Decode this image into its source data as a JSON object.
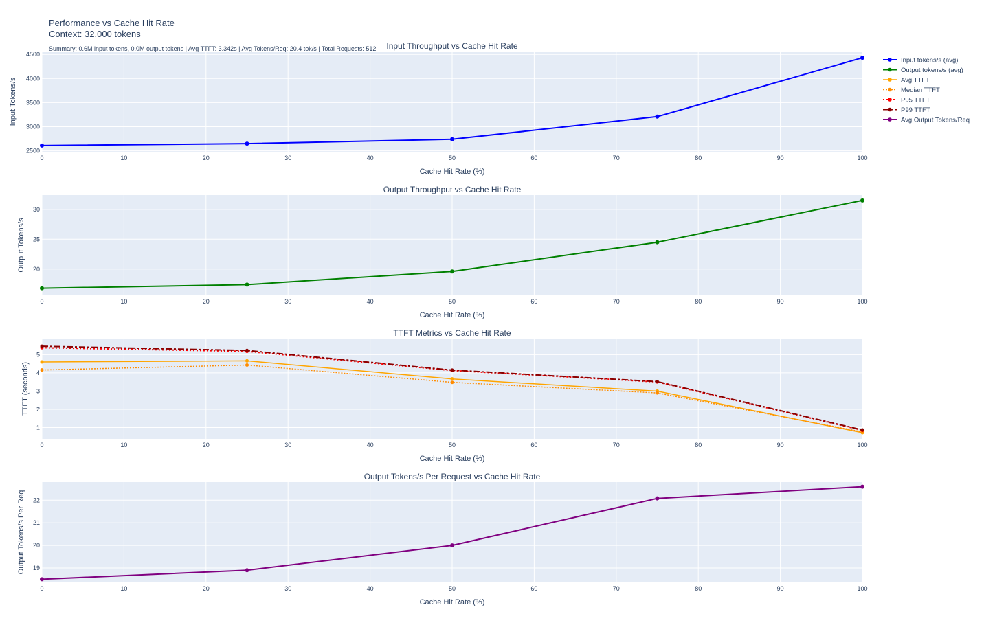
{
  "figure": {
    "title_line1": "Performance vs Cache Hit Rate",
    "title_line2": "Context: 32,000 tokens",
    "summary": "Summary: 0.6M input tokens, 0.0M output tokens | Avg TTFT: 3.342s | Avg Tokens/Req: 20.4 tok/s | Total Requests: 512"
  },
  "colors": {
    "plot_bg": "#e5ecf6",
    "grid": "#ffffff",
    "text": "#2a3f5f",
    "input": "#0000ff",
    "output": "#008000",
    "avg_ttft": "#ffa500",
    "median_ttft": "#ff8c00",
    "p95_ttft": "#ff0000",
    "p99_ttft": "#8b0000",
    "per_req": "#800080"
  },
  "chart_data": [
    {
      "type": "line",
      "title": "Input Throughput vs Cache Hit Rate",
      "xlabel": "Cache Hit Rate (%)",
      "ylabel": "Input Tokens/s",
      "x": [
        0,
        25,
        50,
        75,
        100
      ],
      "xlim": [
        0,
        100
      ],
      "xticks": [
        0,
        10,
        20,
        30,
        40,
        50,
        60,
        70,
        80,
        90,
        100
      ],
      "ylim": [
        2480,
        4560
      ],
      "yticks": [
        2500,
        3000,
        3500,
        4000,
        4500
      ],
      "grid": true,
      "series": [
        {
          "name": "Input tokens/s (avg)",
          "values": [
            2610,
            2650,
            2740,
            3210,
            4430
          ],
          "color": "#0000ff",
          "dash": "solid",
          "width": 2,
          "marker": 3
        }
      ]
    },
    {
      "type": "line",
      "title": "Output Throughput vs Cache Hit Rate",
      "xlabel": "Cache Hit Rate (%)",
      "ylabel": "Output Tokens/s",
      "x": [
        0,
        25,
        50,
        75,
        100
      ],
      "xlim": [
        0,
        100
      ],
      "xticks": [
        0,
        10,
        20,
        30,
        40,
        50,
        60,
        70,
        80,
        90,
        100
      ],
      "ylim": [
        15.6,
        32.4
      ],
      "yticks": [
        20,
        25,
        30
      ],
      "grid": true,
      "series": [
        {
          "name": "Output tokens/s (avg)",
          "values": [
            16.8,
            17.4,
            19.6,
            24.5,
            31.5
          ],
          "color": "#008000",
          "dash": "solid",
          "width": 2,
          "marker": 3
        }
      ]
    },
    {
      "type": "line",
      "title": "TTFT Metrics vs Cache Hit Rate",
      "xlabel": "Cache Hit Rate (%)",
      "ylabel": "TTFT (seconds)",
      "x": [
        0,
        25,
        50,
        75,
        100
      ],
      "xlim": [
        0,
        100
      ],
      "xticks": [
        0,
        10,
        20,
        30,
        40,
        50,
        60,
        70,
        80,
        90,
        100
      ],
      "ylim": [
        0.38,
        5.88
      ],
      "yticks": [
        1,
        2,
        3,
        4,
        5
      ],
      "grid": true,
      "series": [
        {
          "name": "Avg TTFT",
          "values": [
            4.6,
            4.66,
            3.67,
            3.0,
            0.72
          ],
          "color": "#ffa500",
          "dash": "solid",
          "width": 1.5,
          "marker": 2.5
        },
        {
          "name": "Median TTFT",
          "values": [
            4.16,
            4.43,
            3.48,
            2.9,
            0.76
          ],
          "color": "#ff8c00",
          "dash": "2,2",
          "width": 1.5,
          "marker": 2.5
        },
        {
          "name": "P95 TTFT",
          "values": [
            5.38,
            5.18,
            4.13,
            3.5,
            0.85
          ],
          "color": "#ff0000",
          "dash": "2,3",
          "width": 2,
          "marker": 2.5
        },
        {
          "name": "P99 TTFT",
          "values": [
            5.46,
            5.23,
            4.15,
            3.52,
            0.87
          ],
          "color": "#8b0000",
          "dash": "9,3,3,3",
          "width": 2,
          "marker": 2.5
        }
      ]
    },
    {
      "type": "line",
      "title": "Output Tokens/s Per Request vs Cache Hit Rate",
      "xlabel": "Cache Hit Rate (%)",
      "ylabel": "Output Tokens/s Per Req",
      "x": [
        0,
        25,
        50,
        75,
        100
      ],
      "xlim": [
        0,
        100
      ],
      "xticks": [
        0,
        10,
        20,
        30,
        40,
        50,
        60,
        70,
        80,
        90,
        100
      ],
      "ylim": [
        18.36,
        22.8
      ],
      "yticks": [
        19,
        20,
        21,
        22
      ],
      "grid": true,
      "series": [
        {
          "name": "Avg Output Tokens/Req",
          "values": [
            18.5,
            18.9,
            20.0,
            22.08,
            22.6
          ],
          "color": "#800080",
          "dash": "solid",
          "width": 2,
          "marker": 3
        }
      ]
    }
  ],
  "legend": {
    "placement": "right",
    "entries": [
      {
        "label": "Input tokens/s (avg)",
        "color": "#0000ff",
        "dash": "solid",
        "width": 2
      },
      {
        "label": "Output tokens/s (avg)",
        "color": "#008000",
        "dash": "solid",
        "width": 2
      },
      {
        "label": "Avg TTFT",
        "color": "#ffa500",
        "dash": "solid",
        "width": 1.5
      },
      {
        "label": "Median TTFT",
        "color": "#ff8c00",
        "dash": "2,2",
        "width": 1.5
      },
      {
        "label": "P95 TTFT",
        "color": "#ff0000",
        "dash": "2,3",
        "width": 2
      },
      {
        "label": "P99 TTFT",
        "color": "#8b0000",
        "dash": "9,3,3,3",
        "width": 2
      },
      {
        "label": "Avg Output Tokens/Req",
        "color": "#800080",
        "dash": "solid",
        "width": 2
      }
    ]
  }
}
